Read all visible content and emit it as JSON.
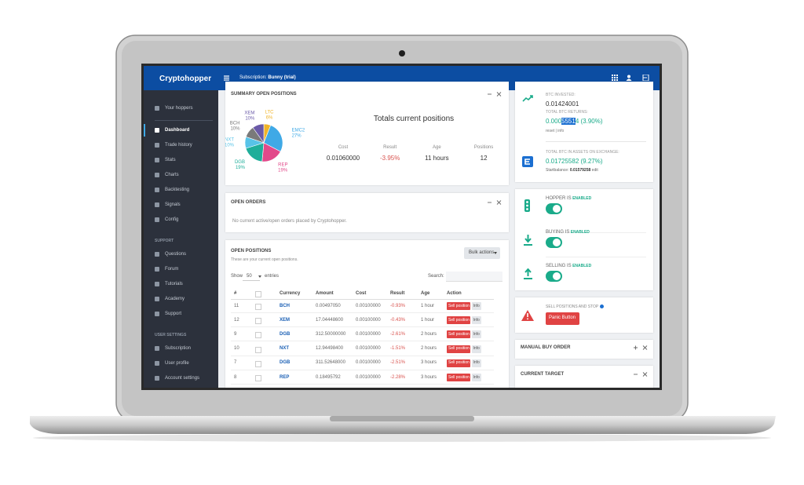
{
  "header": {
    "logo": "Cryptohopper",
    "subscription_label": "Subscription:",
    "subscription_plan": "Bunny (trial)"
  },
  "sidebar": {
    "hoppers": "Your hoppers",
    "main": [
      "Dashboard",
      "Trade history",
      "Stats",
      "Charts",
      "Backtesting",
      "Signals",
      "Config"
    ],
    "support_title": "SUPPORT",
    "support": [
      "Questions",
      "Forum",
      "Tutorials",
      "Academy",
      "Support"
    ],
    "user_title": "USER SETTINGS",
    "user": [
      "Subscription",
      "User profile",
      "Account settings"
    ]
  },
  "summary": {
    "title": "SUMMARY OPEN POSITIONS",
    "heading": "Totals current positions",
    "pie": {
      "labels": [
        "LTC",
        "EMC2",
        "REP",
        "DGB",
        "NXT",
        "BCH",
        "XEM"
      ],
      "values": [
        6,
        27,
        19,
        19,
        10,
        10,
        10
      ],
      "value_labels": [
        "6%",
        "27%",
        "19%",
        "19%",
        "10%",
        "10%",
        "10%"
      ],
      "colors": [
        "#f0b429",
        "#3fa9e6",
        "#e2498a",
        "#1fae9a",
        "#58c3e8",
        "#7a7a7a",
        "#6a5aa8"
      ]
    },
    "stats": [
      {
        "label": "Cost",
        "value": "0.01060000"
      },
      {
        "label": "Result",
        "value": "-3.95%"
      },
      {
        "label": "Age",
        "value": "11 hours"
      },
      {
        "label": "Positions",
        "value": "12"
      }
    ]
  },
  "open_orders": {
    "title": "OPEN ORDERS",
    "message": "No current active/open orders placed by Cryptohopper."
  },
  "open_positions": {
    "title": "OPEN POSITIONS",
    "subtitle": "These are your current open positions.",
    "bulk_button": "Bulk actions",
    "show_label": "Show",
    "show_value": "50",
    "entries_label": "entries",
    "search_label": "Search:",
    "columns": [
      "#",
      "Currency",
      "Amount",
      "Cost",
      "Result",
      "Age",
      "Action"
    ],
    "rows": [
      [
        "11",
        "BCH",
        "0.00497050",
        "0.00100000",
        "-0.93%",
        "1 hour"
      ],
      [
        "12",
        "XEM",
        "17.04448600",
        "0.00100000",
        "-0.43%",
        "1 hour"
      ],
      [
        "9",
        "DGB",
        "312.50000000",
        "0.00100000",
        "-2.61%",
        "2 hours"
      ],
      [
        "10",
        "NXT",
        "12.94498400",
        "0.00100000",
        "-1.51%",
        "2 hours"
      ],
      [
        "7",
        "DGB",
        "311.52648000",
        "0.00100000",
        "-2.51%",
        "3 hours"
      ],
      [
        "8",
        "REP",
        "0.18495792",
        "0.00100000",
        "-2.28%",
        "3 hours"
      ]
    ],
    "sell_button": "Sell position",
    "info_button": "Info"
  },
  "btc": {
    "invested_label": "BTC INVESTED:",
    "invested_value": "0.01424001",
    "returns_label": "TOTAL BTC RETURNS:",
    "returns_value_parts": [
      "0.000",
      "5551",
      "4 (3.90%)"
    ],
    "reset": "reset",
    "separator": "|",
    "info": "info",
    "assets_label": "TOTAL BTC IN ASSETS ON EXCHANGE:",
    "assets_value": "0.01725582 (9.27%)",
    "start_label": "Startbalance:",
    "start_value": "0.01579258",
    "edit": "edit"
  },
  "toggles": [
    {
      "label": "HOPPER IS",
      "state": "ENABLED"
    },
    {
      "label": "BUYING IS",
      "state": "ENABLED"
    },
    {
      "label": "SELLING IS",
      "state": "ENABLED"
    }
  ],
  "panic": {
    "label": "SELL POSITIONS AND STOP",
    "button": "Panic Button"
  },
  "manual_buy": {
    "title": "MANUAL BUY ORDER"
  },
  "current_target": {
    "title": "CURRENT TARGET"
  }
}
